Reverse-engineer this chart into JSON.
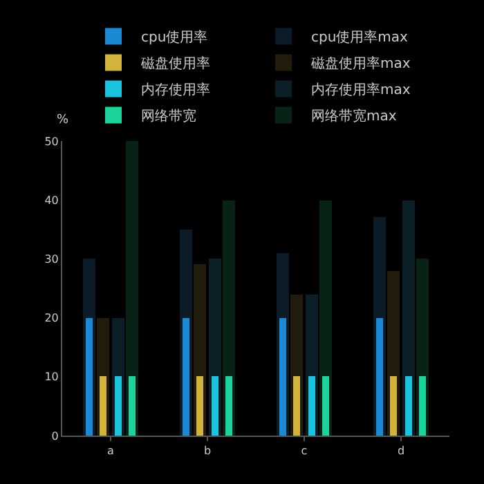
{
  "chart_data": {
    "type": "bar",
    "ylabel": "%",
    "categories": [
      "a",
      "b",
      "c",
      "d"
    ],
    "ylim": [
      0,
      50
    ],
    "yticks": [
      0,
      10,
      20,
      30,
      40,
      50
    ],
    "grid": false,
    "legend": "top",
    "series": [
      {
        "name": "cpu使用率",
        "color": "#1a8ad4",
        "values": [
          20,
          20,
          20,
          20
        ]
      },
      {
        "name": "cpu使用率max",
        "color": "#0b1c28",
        "values": [
          30,
          35,
          31,
          37
        ]
      },
      {
        "name": "磁盘使用率",
        "color": "#d2b43c",
        "values": [
          10,
          10,
          10,
          10
        ]
      },
      {
        "name": "磁盘使用率max",
        "color": "#211c0c",
        "values": [
          20,
          29,
          24,
          28
        ]
      },
      {
        "name": "内存使用率",
        "color": "#1ac4dc",
        "values": [
          10,
          10,
          10,
          10
        ]
      },
      {
        "name": "内存使用率max",
        "color": "#0a2026",
        "values": [
          20,
          30,
          24,
          40
        ]
      },
      {
        "name": "网络带宽",
        "color": "#1ad49c",
        "values": [
          10,
          10,
          10,
          10
        ]
      },
      {
        "name": "网络带宽max",
        "color": "#082216",
        "values": [
          50,
          40,
          40,
          30
        ]
      }
    ]
  }
}
